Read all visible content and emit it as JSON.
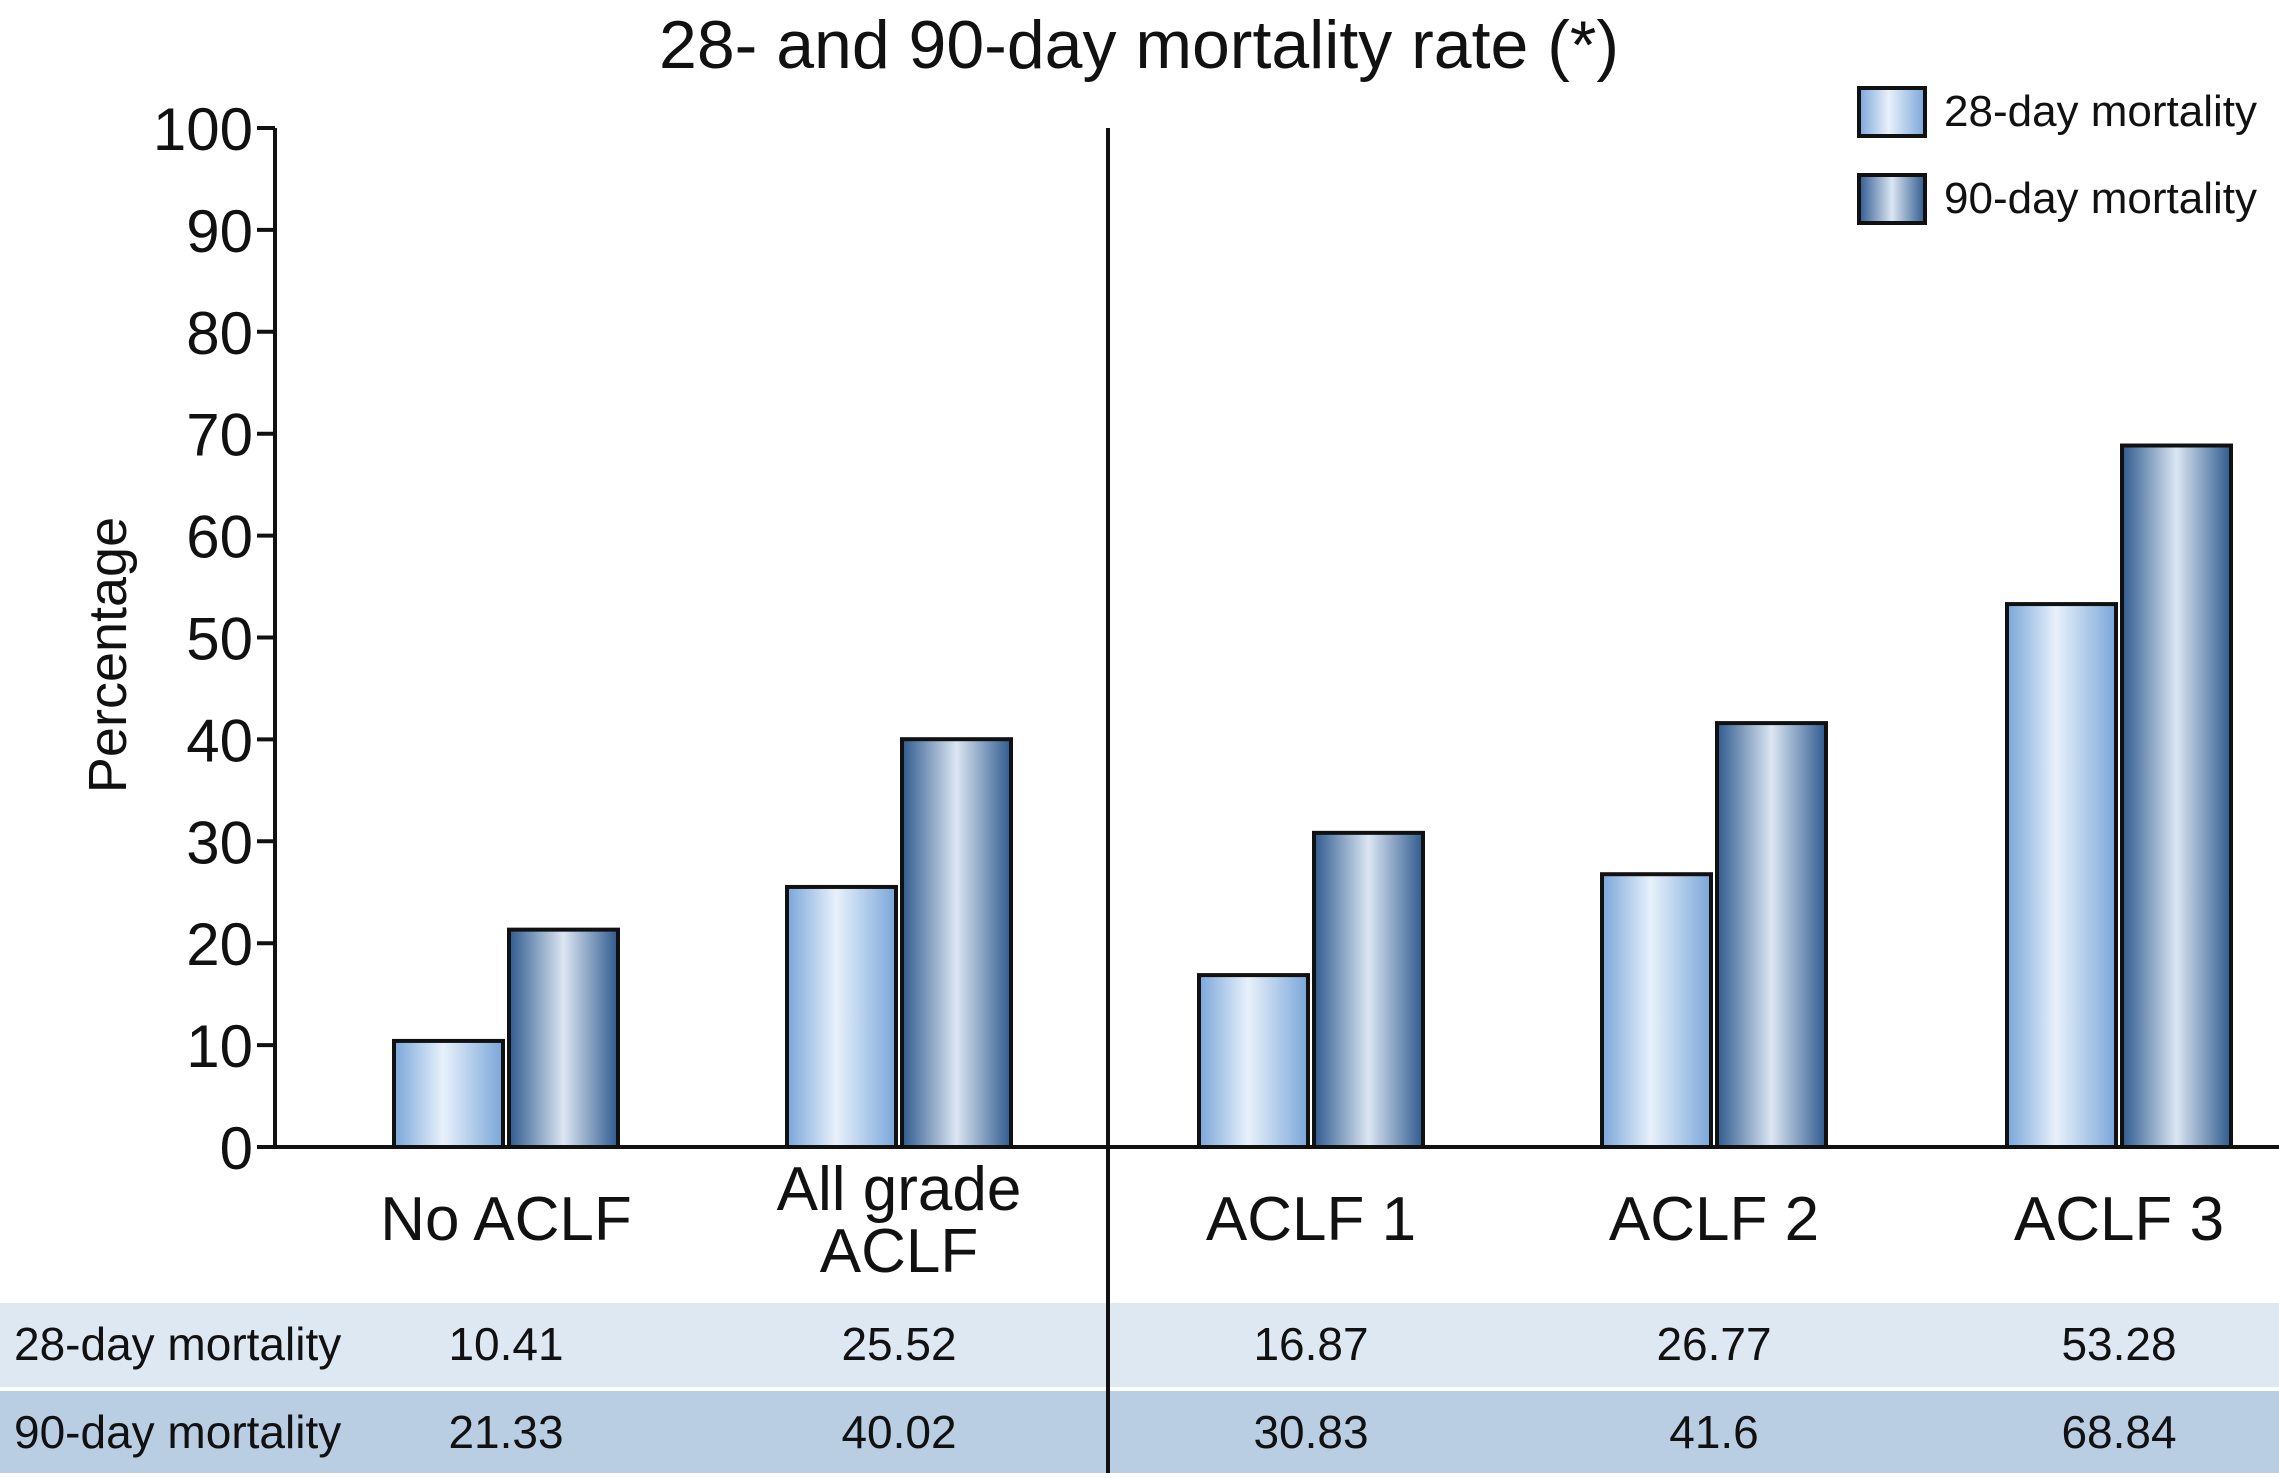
{
  "chart_data": {
    "type": "bar",
    "title": "28- and 90-day mortality rate (*)",
    "ylabel": "Percentage",
    "xlabel": "",
    "ylim": [
      0,
      100
    ],
    "yticks": [
      0,
      10,
      20,
      30,
      40,
      50,
      60,
      70,
      80,
      90,
      100
    ],
    "categories": [
      [
        "No ACLF"
      ],
      [
        "All grade",
        "ACLF"
      ],
      [
        "ACLF 1"
      ],
      [
        "ACLF 2"
      ],
      [
        "ACLF 3"
      ]
    ],
    "series": [
      {
        "name": "28-day mortality",
        "values": [
          10.41,
          25.52,
          16.87,
          26.77,
          53.28
        ],
        "color_light": "#e8f1fb",
        "color_dark": "#7aa6d9"
      },
      {
        "name": "90-day mortality",
        "values": [
          21.33,
          40.02,
          30.83,
          41.6,
          68.84
        ],
        "color_light": "#dbe6f2",
        "color_dark": "#2f5a8f"
      }
    ],
    "table": {
      "rows": [
        {
          "label": "28-day mortality",
          "values": [
            "10.41",
            "25.52",
            "16.87",
            "26.77",
            "53.28"
          ],
          "bg": "#dde8f3"
        },
        {
          "label": "90-day mortality",
          "values": [
            "21.33",
            "40.02",
            "30.83",
            "41.6",
            "68.84"
          ],
          "bg": "#b9cde3"
        }
      ]
    },
    "legend_position": "top-right",
    "grid": false,
    "separator_after_category": 2
  }
}
